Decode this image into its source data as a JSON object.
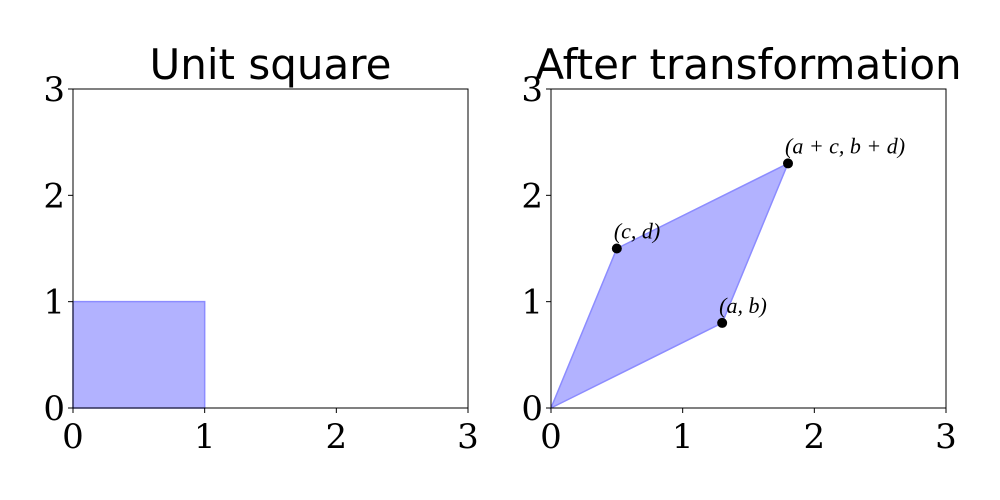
{
  "chart_data": [
    {
      "type": "polygon",
      "title": "Unit square",
      "x": [
        0,
        1,
        1,
        0
      ],
      "y": [
        0,
        0,
        1,
        1
      ],
      "color": "#b2b2ff",
      "xlim": [
        0,
        3
      ],
      "ylim": [
        0,
        3
      ],
      "xticks": [
        0,
        1,
        2,
        3
      ],
      "yticks": [
        0,
        1,
        2,
        3
      ]
    },
    {
      "type": "polygon",
      "title": "After transformation",
      "x": [
        0,
        1.3,
        1.8,
        0.5
      ],
      "y": [
        0,
        0.8,
        2.3,
        1.5
      ],
      "color": "#b2b2ff",
      "points": {
        "x": [
          1.3,
          0.5,
          1.8
        ],
        "y": [
          0.8,
          1.5,
          2.3
        ],
        "labels": [
          "(a, b)",
          "(c, d)",
          "(a + c, b + d)"
        ],
        "color": "#000000"
      },
      "xlim": [
        0,
        3
      ],
      "ylim": [
        0,
        3
      ],
      "xticks": [
        0,
        1,
        2,
        3
      ],
      "yticks": [
        0,
        1,
        2,
        3
      ]
    }
  ]
}
